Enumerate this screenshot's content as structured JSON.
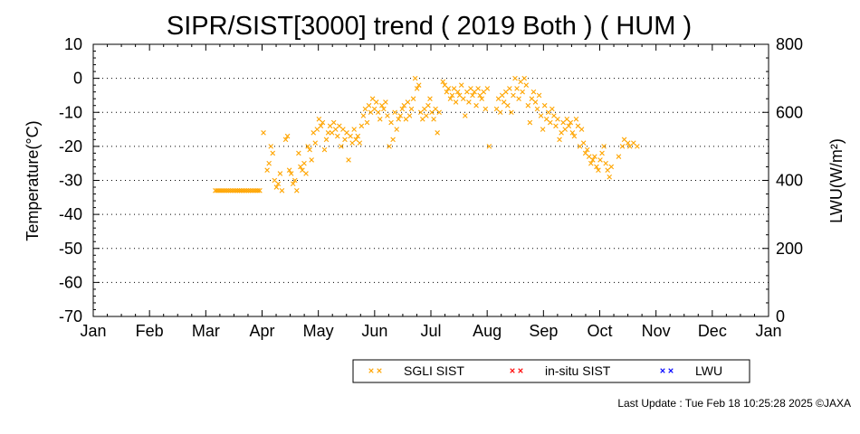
{
  "chart_data": {
    "type": "scatter",
    "title": "SIPR/SIST[3000] trend ( 2019 Both ) ( HUM )",
    "xlabel": "",
    "ylabel": "Temperature(°C)",
    "y2label": "LWU(W/m²)",
    "x_ticks": [
      "Jan",
      "Feb",
      "Mar",
      "Apr",
      "May",
      "Jun",
      "Jul",
      "Aug",
      "Sep",
      "Oct",
      "Nov",
      "Dec",
      "Jan"
    ],
    "xlim": [
      0,
      365
    ],
    "ylim": [
      -70,
      10
    ],
    "y_ticks": [
      10,
      0,
      -10,
      -20,
      -30,
      -40,
      -50,
      -60,
      -70
    ],
    "y2lim": [
      0,
      800
    ],
    "y2_ticks": [
      800,
      600,
      400,
      200,
      0
    ],
    "grid": "dotted horizontal",
    "legend_position": "bottom",
    "colors": {
      "sgli": "#ffa500",
      "insitu": "#ff0000",
      "lwu": "#0000ff"
    },
    "series": [
      {
        "name": "SGLI SIST",
        "marker": "x",
        "points": [
          [
            66,
            -33
          ],
          [
            67,
            -33
          ],
          [
            68,
            -33
          ],
          [
            69,
            -33
          ],
          [
            70,
            -33
          ],
          [
            71,
            -33
          ],
          [
            72,
            -33
          ],
          [
            73,
            -33
          ],
          [
            74,
            -33
          ],
          [
            75,
            -33
          ],
          [
            76,
            -33
          ],
          [
            77,
            -33
          ],
          [
            78,
            -33
          ],
          [
            79,
            -33
          ],
          [
            80,
            -33
          ],
          [
            81,
            -33
          ],
          [
            82,
            -33
          ],
          [
            83,
            -33
          ],
          [
            84,
            -33
          ],
          [
            85,
            -33
          ],
          [
            86,
            -33
          ],
          [
            87,
            -33
          ],
          [
            88,
            -33
          ],
          [
            89,
            -33
          ],
          [
            90,
            -33
          ],
          [
            92,
            -16
          ],
          [
            94,
            -27
          ],
          [
            95,
            -25
          ],
          [
            96,
            -20
          ],
          [
            97,
            -22
          ],
          [
            98,
            -30
          ],
          [
            99,
            -32
          ],
          [
            100,
            -31
          ],
          [
            101,
            -28
          ],
          [
            102,
            -33
          ],
          [
            104,
            -18
          ],
          [
            105,
            -17
          ],
          [
            106,
            -27
          ],
          [
            107,
            -28
          ],
          [
            108,
            -31
          ],
          [
            109,
            -30
          ],
          [
            110,
            -33
          ],
          [
            111,
            -22
          ],
          [
            112,
            -26
          ],
          [
            113,
            -27
          ],
          [
            114,
            -25
          ],
          [
            115,
            -28
          ],
          [
            116,
            -20
          ],
          [
            117,
            -21
          ],
          [
            118,
            -24
          ],
          [
            119,
            -16
          ],
          [
            120,
            -19
          ],
          [
            121,
            -15
          ],
          [
            122,
            -12
          ],
          [
            123,
            -14
          ],
          [
            124,
            -13
          ],
          [
            125,
            -21
          ],
          [
            126,
            -18
          ],
          [
            127,
            -16
          ],
          [
            128,
            -14
          ],
          [
            129,
            -16
          ],
          [
            130,
            -13
          ],
          [
            131,
            -15
          ],
          [
            132,
            -17
          ],
          [
            133,
            -14
          ],
          [
            134,
            -20
          ],
          [
            135,
            -15
          ],
          [
            136,
            -18
          ],
          [
            137,
            -16
          ],
          [
            138,
            -24
          ],
          [
            139,
            -17
          ],
          [
            140,
            -19
          ],
          [
            141,
            -15
          ],
          [
            142,
            -18
          ],
          [
            143,
            -17
          ],
          [
            144,
            -19
          ],
          [
            145,
            -14
          ],
          [
            146,
            -11
          ],
          [
            147,
            -9
          ],
          [
            148,
            -13
          ],
          [
            149,
            -8
          ],
          [
            150,
            -10
          ],
          [
            151,
            -6
          ],
          [
            152,
            -9
          ],
          [
            153,
            -7
          ],
          [
            154,
            -10
          ],
          [
            155,
            -12
          ],
          [
            156,
            -8
          ],
          [
            157,
            -9
          ],
          [
            158,
            -7
          ],
          [
            159,
            -11
          ],
          [
            160,
            -20
          ],
          [
            161,
            -13
          ],
          [
            162,
            -18
          ],
          [
            163,
            -10
          ],
          [
            164,
            -15
          ],
          [
            165,
            -12
          ],
          [
            166,
            -11
          ],
          [
            167,
            -9
          ],
          [
            168,
            -8
          ],
          [
            169,
            -12
          ],
          [
            170,
            -7
          ],
          [
            171,
            -11
          ],
          [
            172,
            -9
          ],
          [
            173,
            -6
          ],
          [
            174,
            0
          ],
          [
            175,
            -3
          ],
          [
            176,
            -2
          ],
          [
            177,
            -10
          ],
          [
            178,
            -12
          ],
          [
            179,
            -9
          ],
          [
            180,
            -11
          ],
          [
            181,
            -8
          ],
          [
            182,
            -6
          ],
          [
            183,
            -10
          ],
          [
            184,
            -12
          ],
          [
            185,
            -9
          ],
          [
            186,
            -16
          ],
          [
            187,
            -10
          ],
          [
            189,
            -1
          ],
          [
            190,
            -2
          ],
          [
            191,
            -4
          ],
          [
            192,
            -3
          ],
          [
            193,
            -6
          ],
          [
            194,
            -5
          ],
          [
            195,
            -3
          ],
          [
            196,
            -7
          ],
          [
            197,
            -4
          ],
          [
            198,
            -5
          ],
          [
            199,
            -2
          ],
          [
            200,
            -6
          ],
          [
            201,
            -11
          ],
          [
            202,
            -4
          ],
          [
            203,
            -7
          ],
          [
            204,
            -3
          ],
          [
            205,
            -5
          ],
          [
            206,
            -4
          ],
          [
            207,
            -8
          ],
          [
            208,
            -3
          ],
          [
            209,
            -5
          ],
          [
            210,
            -6
          ],
          [
            211,
            -4
          ],
          [
            212,
            -9
          ],
          [
            213,
            -3
          ],
          [
            214,
            -20
          ],
          [
            218,
            -9
          ],
          [
            219,
            -6
          ],
          [
            220,
            -10
          ],
          [
            221,
            -5
          ],
          [
            222,
            -7
          ],
          [
            223,
            -4
          ],
          [
            224,
            -8
          ],
          [
            225,
            -3
          ],
          [
            226,
            -10
          ],
          [
            227,
            -5
          ],
          [
            228,
            0
          ],
          [
            229,
            -3
          ],
          [
            230,
            -6
          ],
          [
            231,
            -1
          ],
          [
            232,
            -4
          ],
          [
            233,
            0
          ],
          [
            234,
            -2
          ],
          [
            235,
            -8
          ],
          [
            236,
            -13
          ],
          [
            237,
            -6
          ],
          [
            238,
            -4
          ],
          [
            239,
            -7
          ],
          [
            240,
            -9
          ],
          [
            241,
            -5
          ],
          [
            242,
            -11
          ],
          [
            243,
            -15
          ],
          [
            244,
            -8
          ],
          [
            245,
            -12
          ],
          [
            246,
            -10
          ],
          [
            247,
            -13
          ],
          [
            248,
            -9
          ],
          [
            249,
            -11
          ],
          [
            250,
            -14
          ],
          [
            251,
            -12
          ],
          [
            252,
            -18
          ],
          [
            253,
            -16
          ],
          [
            254,
            -13
          ],
          [
            255,
            -15
          ],
          [
            256,
            -12
          ],
          [
            257,
            -14
          ],
          [
            258,
            -13
          ],
          [
            259,
            -16
          ],
          [
            260,
            -17
          ],
          [
            261,
            -12
          ],
          [
            262,
            -14
          ],
          [
            263,
            -20
          ],
          [
            264,
            -15
          ],
          [
            265,
            -19
          ],
          [
            266,
            -22
          ],
          [
            267,
            -21
          ],
          [
            268,
            -23
          ],
          [
            269,
            -25
          ],
          [
            270,
            -24
          ],
          [
            271,
            -23
          ],
          [
            272,
            -26
          ],
          [
            273,
            -27
          ],
          [
            274,
            -24
          ],
          [
            275,
            -22
          ],
          [
            276,
            -20
          ],
          [
            277,
            -25
          ],
          [
            278,
            -27
          ],
          [
            279,
            -29
          ],
          [
            280,
            -26
          ],
          [
            284,
            -23
          ],
          [
            286,
            -20
          ],
          [
            287,
            -18
          ],
          [
            289,
            -19
          ],
          [
            290,
            -20
          ],
          [
            292,
            -19
          ],
          [
            294,
            -20
          ]
        ]
      },
      {
        "name": "in-situ SIST",
        "marker": "x",
        "points": []
      },
      {
        "name": "LWU",
        "marker": "x",
        "points": []
      }
    ],
    "footer": "Last Update : Tue Feb 18 10:25:28 2025 ©JAXA"
  }
}
